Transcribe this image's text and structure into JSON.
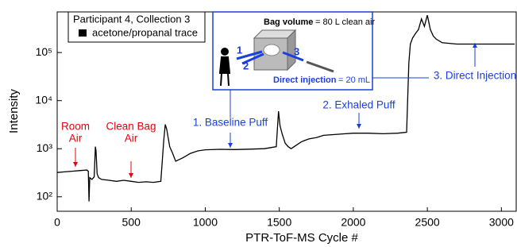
{
  "chart_data": {
    "type": "line",
    "x_label": "PTR-ToF-MS Cycle #",
    "y_label": "Intensity",
    "xlim": [
      0,
      3100
    ],
    "xticks": [
      0,
      500,
      1000,
      1500,
      2000,
      2500,
      3000
    ],
    "ylim": [
      50,
      700000
    ],
    "log_y": true,
    "yticks": [
      {
        "value": 100,
        "label": "10²"
      },
      {
        "value": 1000,
        "label": "10³"
      },
      {
        "value": 10000,
        "label": "10⁴"
      },
      {
        "value": 100000,
        "label": "10⁵"
      }
    ],
    "legend_title": "Participant 4, Collection 3",
    "legend_position": "upper left",
    "x": [
      0,
      50,
      100,
      150,
      200,
      210,
      215,
      220,
      235,
      250,
      258,
      262,
      270,
      280,
      300,
      350,
      400,
      450,
      500,
      550,
      600,
      650,
      700,
      720,
      730,
      740,
      760,
      780,
      800,
      850,
      900,
      950,
      1000,
      1100,
      1200,
      1300,
      1400,
      1480,
      1495,
      1505,
      1520,
      1540,
      1560,
      1580,
      1600,
      1650,
      1700,
      1750,
      1800,
      1900,
      2000,
      2100,
      2200,
      2300,
      2360,
      2375,
      2385,
      2400,
      2420,
      2440,
      2460,
      2480,
      2500,
      2520,
      2540,
      2560,
      2600,
      2700,
      2800,
      2900,
      3000,
      3090
    ],
    "series": [
      {
        "name": "acetone/propanal trace",
        "color": "#000000",
        "values": [
          320,
          330,
          340,
          350,
          360,
          340,
          80,
          250,
          230,
          260,
          1100,
          900,
          300,
          250,
          230,
          220,
          210,
          220,
          210,
          200,
          205,
          200,
          210,
          1500,
          3200,
          2500,
          1100,
          800,
          550,
          650,
          800,
          900,
          950,
          970,
          960,
          980,
          1000,
          1100,
          6000,
          3000,
          2000,
          1300,
          1100,
          1000,
          1100,
          1400,
          1600,
          1700,
          1900,
          2000,
          2100,
          2100,
          2050,
          2100,
          2200,
          60000,
          150000,
          200000,
          250000,
          300000,
          500000,
          350000,
          600000,
          300000,
          220000,
          190000,
          160000,
          150000,
          150000,
          150000,
          150000,
          150000
        ]
      }
    ],
    "annotations": [
      {
        "lines": [
          "Room",
          "Air"
        ],
        "color": "#e8000b"
      },
      {
        "lines": [
          "Clean Bag",
          "Air"
        ],
        "color": "#e8000b"
      },
      {
        "lines": [
          "1. Baseline Puff"
        ],
        "color": "#1a3fe0"
      },
      {
        "lines": [
          "2. Exhaled Puff"
        ],
        "color": "#1a3fe0"
      },
      {
        "lines": [
          "3. Direct Injection"
        ],
        "color": "#1a3fe0"
      }
    ],
    "inset": {
      "bag_label": "Bag volume",
      "bag_text": "= 80 L clean air",
      "injection_label": "Direct injection",
      "injection_text": "= 20 mL",
      "steps": [
        "1",
        "2",
        "3"
      ]
    }
  }
}
